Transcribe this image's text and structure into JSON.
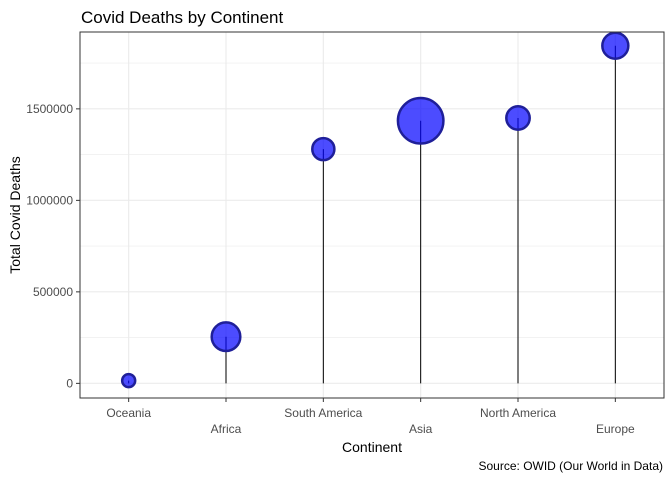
{
  "chart_data": {
    "type": "scatter",
    "title": "Covid Deaths by Continent",
    "xlabel": "Continent",
    "ylabel": "Total Covid Deaths",
    "caption": "Source: OWID (Our World in Data)",
    "categories": [
      "Oceania",
      "Africa",
      "South America",
      "Asia",
      "North America",
      "Europe"
    ],
    "values": [
      15000,
      255000,
      1280000,
      1435000,
      1450000,
      1845000
    ],
    "size_values": [
      1,
      2.2,
      1.7,
      3.5,
      1.8,
      2.0
    ],
    "yticks": [
      0,
      500000,
      1000000,
      1500000
    ],
    "ytick_labels": [
      "0",
      "500000",
      "1000000",
      "1500000"
    ],
    "ylim": [
      -80000,
      1920000
    ],
    "grid": true,
    "legend": "none",
    "colors": {
      "point_fill": "#0000ff",
      "point_stroke": "#1f1f99",
      "stem": "#000000",
      "grid": "#ebebeb",
      "panel_border": "#333333"
    }
  }
}
